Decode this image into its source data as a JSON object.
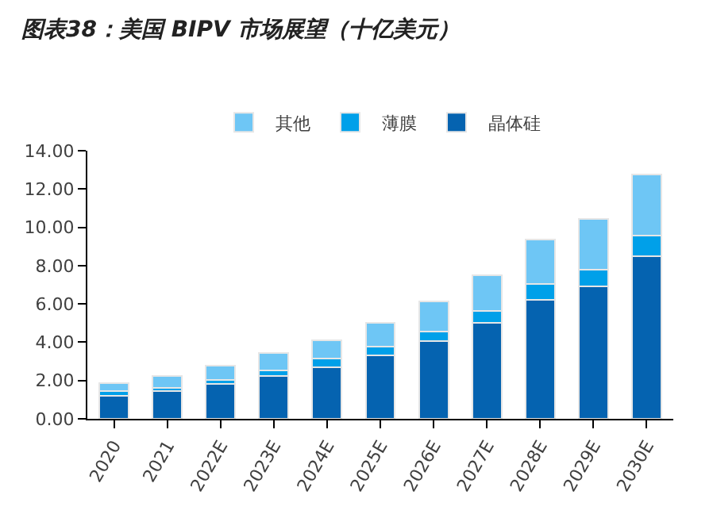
{
  "chart_data": {
    "type": "bar",
    "title": "图表38：美国 BIPV 市场展望（十亿美元）",
    "stacked": true,
    "categories": [
      "2020",
      "2021",
      "2022E",
      "2023E",
      "2024E",
      "2025E",
      "2026E",
      "2027E",
      "2028E",
      "2029E",
      "2030E"
    ],
    "series": [
      {
        "name": "晶体硅",
        "color": "#0563b0",
        "values": [
          1.22,
          1.43,
          1.82,
          2.23,
          2.71,
          3.33,
          4.05,
          5.03,
          6.22,
          6.9,
          8.51
        ]
      },
      {
        "name": "薄膜",
        "color": "#00a0e9",
        "values": [
          0.21,
          0.18,
          0.23,
          0.3,
          0.44,
          0.45,
          0.5,
          0.62,
          0.83,
          0.9,
          1.04
        ]
      },
      {
        "name": "其他",
        "color": "#6ec6f5",
        "values": [
          0.45,
          0.62,
          0.72,
          0.89,
          0.96,
          1.25,
          1.58,
          1.85,
          2.33,
          2.62,
          3.22
        ]
      }
    ],
    "ylim": [
      0,
      14
    ],
    "yticks": [
      {
        "value": 0,
        "label": "0.00"
      },
      {
        "value": 2,
        "label": "2.00"
      },
      {
        "value": 4,
        "label": "4.00"
      },
      {
        "value": 6,
        "label": "6.00"
      },
      {
        "value": 8,
        "label": "8.00"
      },
      {
        "value": 10,
        "label": "10.00"
      },
      {
        "value": 12,
        "label": "12.00"
      },
      {
        "value": 14,
        "label": "14.00"
      }
    ],
    "grid": false,
    "legend": "top"
  }
}
